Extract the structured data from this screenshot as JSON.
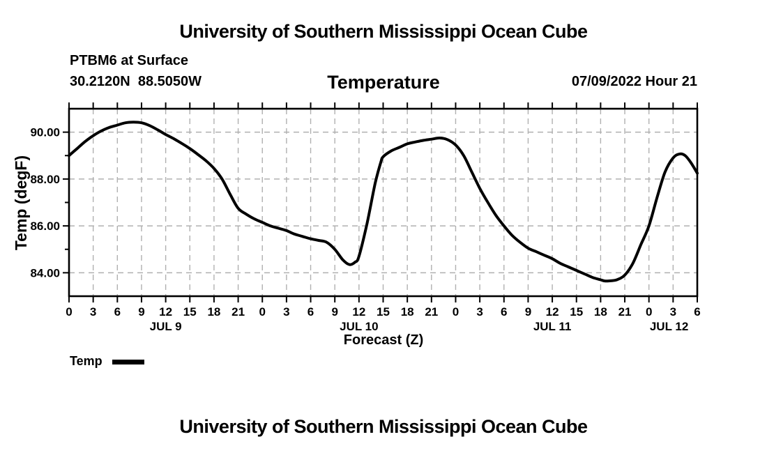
{
  "page": {
    "top_title": "University of Southern Mississippi Ocean Cube",
    "bottom_title": "University of Southern Mississippi Ocean Cube"
  },
  "header": {
    "station": "PTBM6 at Surface",
    "coordinates": "30.2120N  88.5050W",
    "chart_title": "Temperature",
    "datetime": "07/09/2022 Hour 21"
  },
  "legend": {
    "label": "Temp"
  },
  "colors": {
    "line": "#000000",
    "grid": "#b0b0b0",
    "axis": "#000000"
  },
  "chart_data": {
    "type": "line",
    "title": "Temperature",
    "xlabel": "Forecast (Z)",
    "ylabel": "Temp (degF)",
    "ylim": [
      83,
      91
    ],
    "xlim_hours": [
      0,
      78
    ],
    "grid": true,
    "legend_position": "bottom-left",
    "y_major_ticks": [
      {
        "value": 84,
        "label": "84.00"
      },
      {
        "value": 86,
        "label": "86.00"
      },
      {
        "value": 88,
        "label": "88.00"
      },
      {
        "value": 90,
        "label": "90.00"
      }
    ],
    "y_minor_ticks": [
      85,
      87,
      89
    ],
    "x_ticks": [
      {
        "hour": 0,
        "label": "0"
      },
      {
        "hour": 3,
        "label": "3"
      },
      {
        "hour": 6,
        "label": "6"
      },
      {
        "hour": 9,
        "label": "9"
      },
      {
        "hour": 12,
        "label": "12"
      },
      {
        "hour": 15,
        "label": "15"
      },
      {
        "hour": 18,
        "label": "18"
      },
      {
        "hour": 21,
        "label": "21"
      },
      {
        "hour": 24,
        "label": "0"
      },
      {
        "hour": 27,
        "label": "3"
      },
      {
        "hour": 30,
        "label": "6"
      },
      {
        "hour": 33,
        "label": "9"
      },
      {
        "hour": 36,
        "label": "12"
      },
      {
        "hour": 39,
        "label": "15"
      },
      {
        "hour": 42,
        "label": "18"
      },
      {
        "hour": 45,
        "label": "21"
      },
      {
        "hour": 48,
        "label": "0"
      },
      {
        "hour": 51,
        "label": "3"
      },
      {
        "hour": 54,
        "label": "6"
      },
      {
        "hour": 57,
        "label": "9"
      },
      {
        "hour": 60,
        "label": "12"
      },
      {
        "hour": 63,
        "label": "15"
      },
      {
        "hour": 66,
        "label": "18"
      },
      {
        "hour": 69,
        "label": "21"
      },
      {
        "hour": 72,
        "label": "0"
      },
      {
        "hour": 75,
        "label": "3"
      },
      {
        "hour": 78,
        "label": "6"
      }
    ],
    "day_labels": [
      {
        "hour": 12,
        "label": "JUL 9"
      },
      {
        "hour": 36,
        "label": "JUL 10"
      },
      {
        "hour": 60,
        "label": "JUL 11"
      },
      {
        "hour": 74.5,
        "label": "JUL 12"
      }
    ],
    "series": [
      {
        "name": "Temp",
        "color": "#000000",
        "points": [
          [
            0,
            89.0
          ],
          [
            1,
            89.3
          ],
          [
            2,
            89.6
          ],
          [
            3,
            89.85
          ],
          [
            4,
            90.05
          ],
          [
            5,
            90.2
          ],
          [
            6,
            90.3
          ],
          [
            7,
            90.4
          ],
          [
            8,
            90.43
          ],
          [
            9,
            90.4
          ],
          [
            10,
            90.28
          ],
          [
            11,
            90.1
          ],
          [
            12,
            89.9
          ],
          [
            13,
            89.72
          ],
          [
            14,
            89.52
          ],
          [
            15,
            89.3
          ],
          [
            16,
            89.05
          ],
          [
            17,
            88.78
          ],
          [
            18,
            88.45
          ],
          [
            19,
            88.0
          ],
          [
            20,
            87.35
          ],
          [
            21,
            86.75
          ],
          [
            22,
            86.5
          ],
          [
            23,
            86.3
          ],
          [
            24,
            86.15
          ],
          [
            25,
            86.0
          ],
          [
            26,
            85.9
          ],
          [
            27,
            85.8
          ],
          [
            28,
            85.65
          ],
          [
            29,
            85.55
          ],
          [
            30,
            85.45
          ],
          [
            31,
            85.38
          ],
          [
            32,
            85.3
          ],
          [
            33,
            85.0
          ],
          [
            34,
            84.55
          ],
          [
            34.8,
            84.35
          ],
          [
            35.5,
            84.45
          ],
          [
            36,
            84.7
          ],
          [
            37,
            86.1
          ],
          [
            38,
            87.8
          ],
          [
            38.7,
            88.7
          ],
          [
            39,
            88.95
          ],
          [
            40,
            89.2
          ],
          [
            41,
            89.35
          ],
          [
            42,
            89.5
          ],
          [
            43,
            89.58
          ],
          [
            44,
            89.65
          ],
          [
            45,
            89.7
          ],
          [
            46,
            89.75
          ],
          [
            47,
            89.68
          ],
          [
            48,
            89.45
          ],
          [
            49,
            89.0
          ],
          [
            50,
            88.3
          ],
          [
            51,
            87.6
          ],
          [
            52,
            87.0
          ],
          [
            53,
            86.45
          ],
          [
            54,
            86.0
          ],
          [
            55,
            85.6
          ],
          [
            56,
            85.3
          ],
          [
            57,
            85.05
          ],
          [
            58,
            84.9
          ],
          [
            59,
            84.75
          ],
          [
            60,
            84.6
          ],
          [
            61,
            84.4
          ],
          [
            62,
            84.25
          ],
          [
            63,
            84.1
          ],
          [
            64,
            83.95
          ],
          [
            65,
            83.8
          ],
          [
            66,
            83.7
          ],
          [
            66.5,
            83.65
          ],
          [
            67,
            83.65
          ],
          [
            68,
            83.7
          ],
          [
            69,
            83.9
          ],
          [
            70,
            84.4
          ],
          [
            71,
            85.2
          ],
          [
            72,
            86.0
          ],
          [
            73,
            87.2
          ],
          [
            74,
            88.3
          ],
          [
            75,
            88.9
          ],
          [
            75.8,
            89.07
          ],
          [
            76.5,
            89.0
          ],
          [
            77.2,
            88.7
          ],
          [
            78,
            88.25
          ]
        ]
      }
    ]
  }
}
